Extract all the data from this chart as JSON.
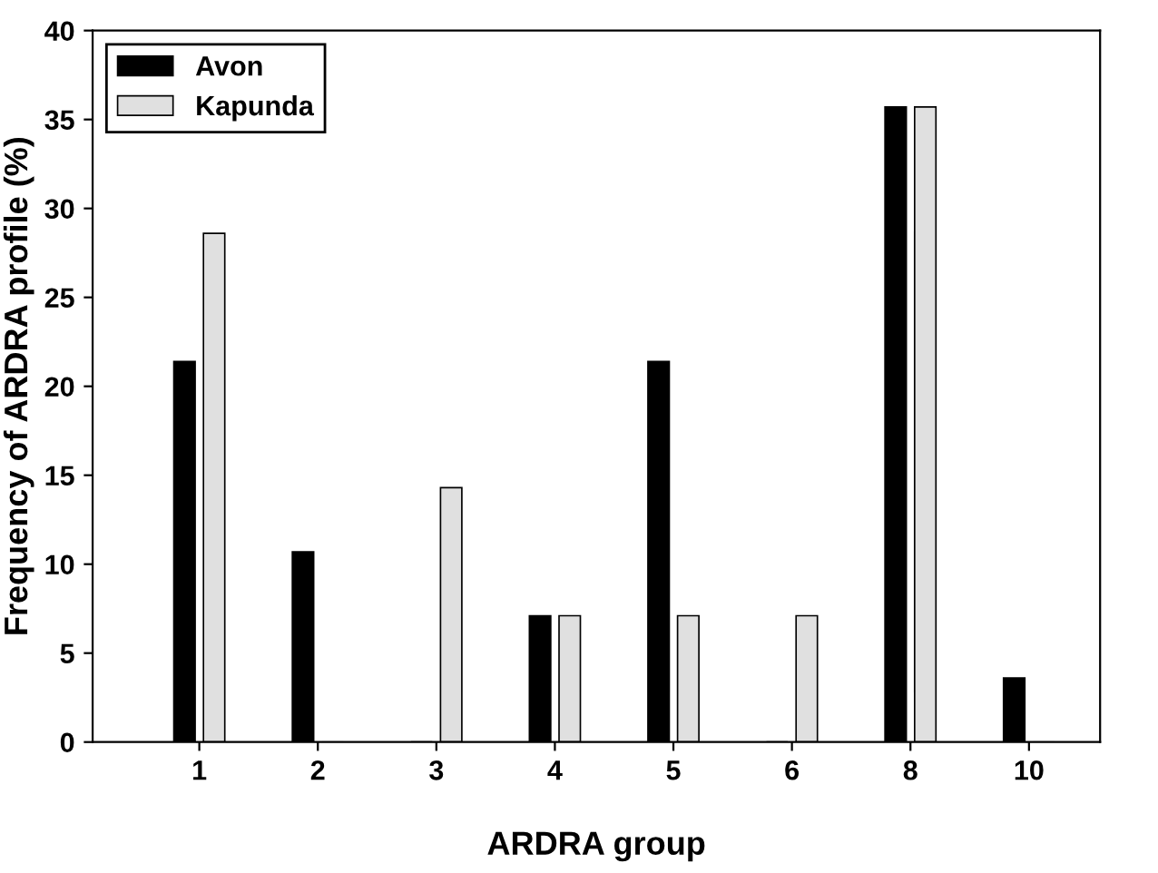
{
  "chart_data": {
    "type": "bar",
    "xlabel": "ARDRA group",
    "ylabel": "Frequency of ARDRA profile (%)",
    "categories": [
      "1",
      "2",
      "3",
      "4",
      "5",
      "6",
      "8",
      "10"
    ],
    "series": [
      {
        "name": "Avon",
        "color": "#000000",
        "values": [
          21.4,
          10.7,
          0,
          7.1,
          21.4,
          0,
          35.7,
          3.6
        ]
      },
      {
        "name": "Kapunda",
        "color": "#e0e0e0",
        "values": [
          28.6,
          0,
          14.3,
          7.1,
          7.1,
          7.1,
          35.7,
          0
        ]
      }
    ],
    "ylim": [
      0,
      40
    ],
    "yticks": [
      0,
      5,
      10,
      15,
      20,
      25,
      30,
      35,
      40
    ],
    "grid": false,
    "legend": "top left"
  }
}
